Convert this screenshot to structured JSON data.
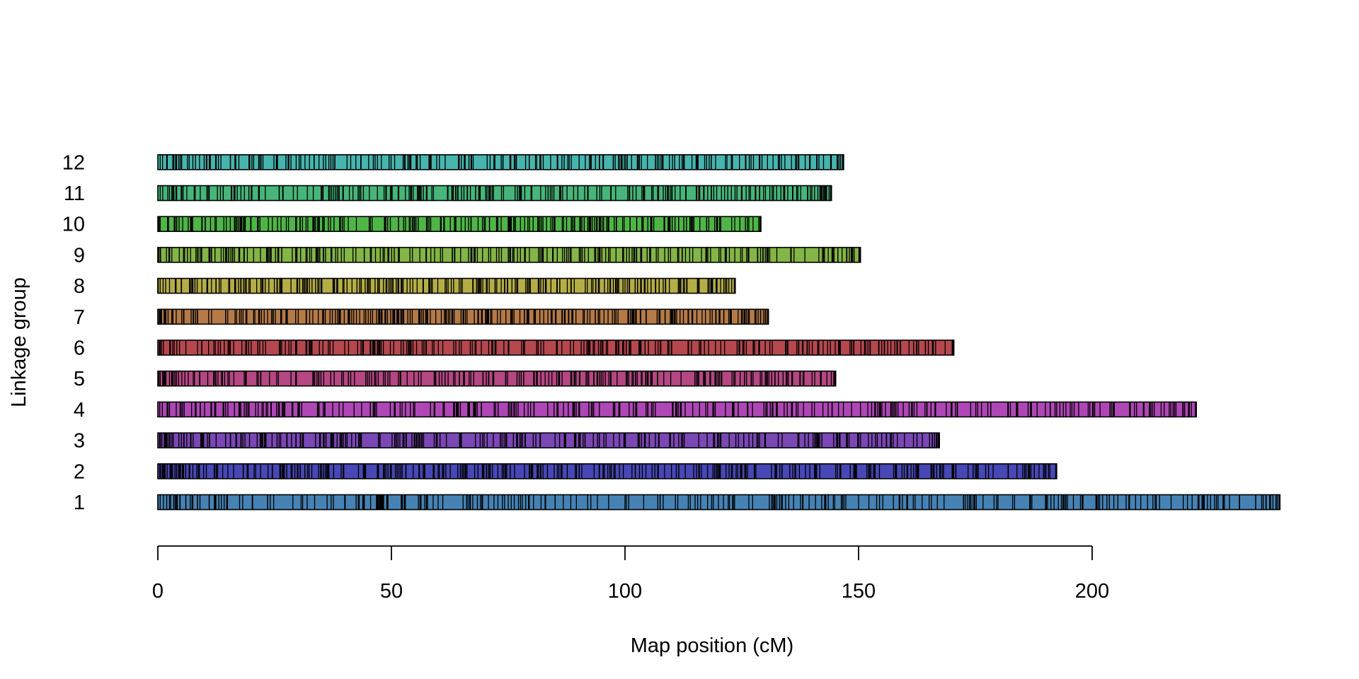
{
  "chart_data": {
    "type": "linkage-map",
    "xlabel": "Map position (cM)",
    "ylabel": "Linkage group",
    "xlim": [
      0,
      240
    ],
    "x_ticks": [
      0,
      50,
      100,
      150,
      200
    ],
    "x_tick_labels": [
      "0",
      "50",
      "100",
      "150",
      "200"
    ],
    "grid": false,
    "legend": "none",
    "marker_color": "#000000",
    "groups": [
      {
        "label": "1",
        "length": 240.2,
        "color": "#4682B4",
        "marker_count": 300,
        "markers": [
          0.5,
          1.2,
          2.5,
          4.1,
          6.0,
          8.5,
          11.0,
          14.2,
          17.5,
          20.3,
          24.8,
          28.9,
          31.0,
          37.1,
          40.0,
          44.2,
          47.0,
          47.4,
          47.8,
          48.3,
          52.1,
          56.3,
          61.0,
          66.1,
          69.5,
          72.8,
          75.0,
          77.2,
          79.5,
          83.0,
          88.4,
          92.0,
          96.5,
          100.8,
          104.0,
          107.5,
          111.3,
          115.0,
          118.9,
          122.1,
          126.5,
          132.0,
          132.5,
          138.0,
          142.1,
          146.3,
          150.0,
          155.2,
          160.5,
          165.1,
          168.3,
          172.5,
          174.0,
          175.2,
          179.0,
          183.4,
          187.1,
          190.0,
          193.8,
          197.5,
          201.0,
          205.5,
          209.3,
          213.0,
          216.9,
          220.4,
          224.0,
          226.2,
          228.0,
          231.5,
          235.0,
          238.2,
          240.0
        ]
      },
      {
        "label": "2",
        "length": 192.4,
        "color": "#4747B5",
        "marker_count": 350,
        "markers": [
          0.4,
          1.5,
          2.8,
          4.0,
          5.5,
          7.5,
          9.8,
          12.2,
          15.0,
          18.3,
          22.0,
          26.1,
          30.5,
          35.0,
          35.4,
          39.8,
          44.0,
          48.5,
          52.3,
          56.8,
          61.0,
          65.2,
          69.8,
          74.0,
          78.5,
          82.0,
          86.3,
          90.2,
          94.5,
          98.8,
          103.1,
          107.0,
          111.5,
          115.8,
          120.2,
          124.1,
          128.0,
          132.3,
          136.5,
          140.8,
          145.1,
          149.0,
          153.2,
          157.5,
          161.8,
          166.0,
          170.2,
          174.5,
          178.8,
          182.0,
          186.3,
          190.0,
          192.2
        ]
      },
      {
        "label": "3",
        "length": 167.3,
        "color": "#7A47B5",
        "marker_count": 280,
        "markers": [
          0.5,
          2.0,
          4.5,
          7.0,
          9.5,
          11.0,
          14.5,
          18.2,
          22.0,
          26.3,
          30.5,
          34.8,
          36.0,
          39.0,
          43.2,
          47.5,
          51.8,
          55.0,
          56.1,
          60.4,
          64.8,
          69.0,
          73.3,
          77.5,
          81.8,
          86.0,
          90.3,
          94.5,
          98.8,
          103.0,
          107.3,
          111.5,
          115.8,
          120.0,
          124.3,
          128.5,
          132.8,
          137.0,
          141.3,
          145.5,
          149.8,
          154.0,
          156.0,
          158.3,
          162.5,
          166.8,
          167.2
        ]
      },
      {
        "label": "4",
        "length": 222.3,
        "color": "#AE47B5",
        "marker_count": 330,
        "markers": [
          0.4,
          2.5,
          5.0,
          8.0,
          11.5,
          15.0,
          18.5,
          22.3,
          26.0,
          30.2,
          34.5,
          38.8,
          42.0,
          46.5,
          50.8,
          55.0,
          59.3,
          63.5,
          67.8,
          72.0,
          76.3,
          80.5,
          84.8,
          89.0,
          93.3,
          97.5,
          101.8,
          106.0,
          110.3,
          114.5,
          118.8,
          123.0,
          127.3,
          131.5,
          135.8,
          140.0,
          144.3,
          148.5,
          152.8,
          155.0,
          157.0,
          161.3,
          165.5,
          169.8,
          174.0,
          178.3,
          182.5,
          186.8,
          191.0,
          195.3,
          199.5,
          203.8,
          208.0,
          212.3,
          216.5,
          220.8,
          222.1
        ]
      },
      {
        "label": "5",
        "length": 145.1,
        "color": "#B54783",
        "marker_count": 240,
        "markers": [
          0.5,
          1.5,
          2.5,
          4.0,
          6.5,
          9.0,
          12.0,
          15.3,
          18.5,
          22.0,
          25.8,
          29.5,
          33.3,
          37.0,
          40.8,
          44.5,
          48.3,
          52.0,
          55.8,
          59.5,
          63.3,
          67.0,
          70.8,
          74.5,
          78.3,
          82.0,
          85.8,
          89.5,
          93.3,
          97.0,
          100.8,
          104.5,
          108.3,
          112.0,
          115.8,
          119.5,
          123.3,
          127.0,
          130.8,
          134.5,
          138.3,
          142.0,
          144.9
        ]
      },
      {
        "label": "6",
        "length": 170.4,
        "color": "#B5474F",
        "marker_count": 260,
        "markers": [
          0.5,
          3.5,
          6.0,
          8.5,
          12.0,
          15.5,
          19.0,
          22.5,
          26.0,
          29.5,
          33.0,
          36.5,
          40.0,
          43.5,
          47.0,
          50.5,
          54.0,
          57.5,
          61.0,
          64.5,
          68.0,
          71.5,
          75.0,
          78.5,
          82.0,
          85.5,
          89.0,
          92.5,
          96.0,
          99.5,
          101.0,
          103.0,
          106.5,
          110.0,
          113.5,
          117.0,
          120.5,
          124.0,
          127.5,
          131.0,
          134.5,
          138.0,
          141.5,
          145.0,
          148.5,
          152.0,
          155.5,
          159.0,
          162.5,
          166.0,
          170.2
        ]
      },
      {
        "label": "7",
        "length": 130.7,
        "color": "#B57A47",
        "marker_count": 270,
        "markers": [
          0.3,
          1.5,
          3.0,
          5.5,
          8.5,
          11.5,
          14.5,
          17.5,
          20.5,
          23.5,
          26.5,
          29.5,
          32.5,
          35.5,
          38.5,
          41.5,
          44.5,
          47.5,
          48.0,
          50.5,
          53.5,
          56.5,
          59.5,
          62.5,
          65.5,
          68.5,
          71.5,
          74.5,
          77.5,
          80.5,
          83.5,
          86.5,
          89.5,
          92.5,
          95.5,
          98.5,
          101.5,
          104.5,
          107.5,
          110.5,
          113.5,
          116.5,
          119.5,
          122.5,
          125.5,
          128.5,
          130.5
        ]
      },
      {
        "label": "8",
        "length": 123.6,
        "color": "#B5AE47",
        "marker_count": 250,
        "markers": [
          0.5,
          2.5,
          5.0,
          7.5,
          10.5,
          13.5,
          16.5,
          19.5,
          22.5,
          25.5,
          28.5,
          31.5,
          34.5,
          37.5,
          40.5,
          43.5,
          46.5,
          49.5,
          52.5,
          55.5,
          58.5,
          61.5,
          64.5,
          67.5,
          70.5,
          73.5,
          76.5,
          79.5,
          82.5,
          85.5,
          88.5,
          91.5,
          94.5,
          97.5,
          100.5,
          103.5,
          106.5,
          109.5,
          112.5,
          115.5,
          118.5,
          121.5,
          123.4
        ]
      },
      {
        "label": "9",
        "length": 150.4,
        "color": "#83B547",
        "marker_count": 260,
        "markers": [
          0.5,
          3.0,
          5.5,
          8.5,
          11.5,
          14.5,
          17.5,
          20.5,
          23.5,
          26.5,
          29.5,
          32.5,
          35.5,
          38.5,
          45.5,
          48.5,
          51.5,
          54.5,
          57.5,
          60.5,
          63.5,
          66.5,
          69.5,
          72.5,
          75.5,
          78.5,
          81.5,
          84.5,
          87.5,
          90.5,
          93.5,
          96.5,
          99.5,
          102.5,
          105.5,
          108.5,
          111.5,
          114.5,
          117.5,
          120.5,
          123.5,
          126.5,
          129.5,
          132.5,
          135.5,
          138.5,
          141.5,
          144.5,
          147.5,
          150.2
        ]
      },
      {
        "label": "10",
        "length": 129.1,
        "color": "#4FB547",
        "marker_count": 240,
        "markers": [
          0.5,
          3.5,
          6.5,
          9.5,
          12.5,
          15.5,
          18.5,
          21.5,
          24.5,
          27.5,
          30.5,
          33.5,
          36.5,
          39.5,
          42.5,
          45.5,
          48.5,
          51.5,
          54.5,
          57.5,
          60.5,
          63.5,
          66.5,
          69.5,
          72.5,
          75.5,
          78.5,
          81.5,
          84.5,
          87.5,
          90.5,
          93.5,
          96.5,
          99.5,
          102.5,
          105.5,
          108.5,
          111.5,
          114.5,
          117.5,
          120.5,
          123.5,
          126.5,
          128.9
        ]
      },
      {
        "label": "11",
        "length": 144.2,
        "color": "#47B57A",
        "marker_count": 250,
        "markers": [
          0.5,
          2.5,
          5.0,
          8.0,
          11.0,
          14.0,
          17.0,
          20.0,
          23.0,
          26.0,
          29.0,
          32.0,
          35.0,
          38.0,
          41.0,
          44.0,
          47.0,
          50.0,
          53.0,
          56.0,
          59.0,
          62.0,
          65.0,
          68.0,
          71.0,
          74.0,
          77.0,
          80.0,
          83.0,
          86.0,
          89.0,
          92.0,
          95.0,
          98.0,
          101.0,
          104.0,
          107.0,
          110.0,
          113.0,
          116.0,
          119.0,
          122.0,
          125.0,
          128.0,
          131.0,
          134.0,
          137.0,
          140.0,
          143.0,
          144.0
        ]
      },
      {
        "label": "12",
        "length": 146.8,
        "color": "#47B5AE",
        "marker_count": 230,
        "markers": [
          0.5,
          2.0,
          4.5,
          7.5,
          10.5,
          13.5,
          16.5,
          19.5,
          22.5,
          25.5,
          28.5,
          31.5,
          34.5,
          37.5,
          40.5,
          43.5,
          46.5,
          49.5,
          52.5,
          55.5,
          58.5,
          61.5,
          64.5,
          67.5,
          70.5,
          73.5,
          76.5,
          79.5,
          82.5,
          85.5,
          88.5,
          91.5,
          94.5,
          97.5,
          100.5,
          103.5,
          106.5,
          109.5,
          112.5,
          115.5,
          118.5,
          121.5,
          124.5,
          127.5,
          130.5,
          133.5,
          136.5,
          139.5,
          142.5,
          145.5,
          146.6
        ]
      }
    ]
  }
}
